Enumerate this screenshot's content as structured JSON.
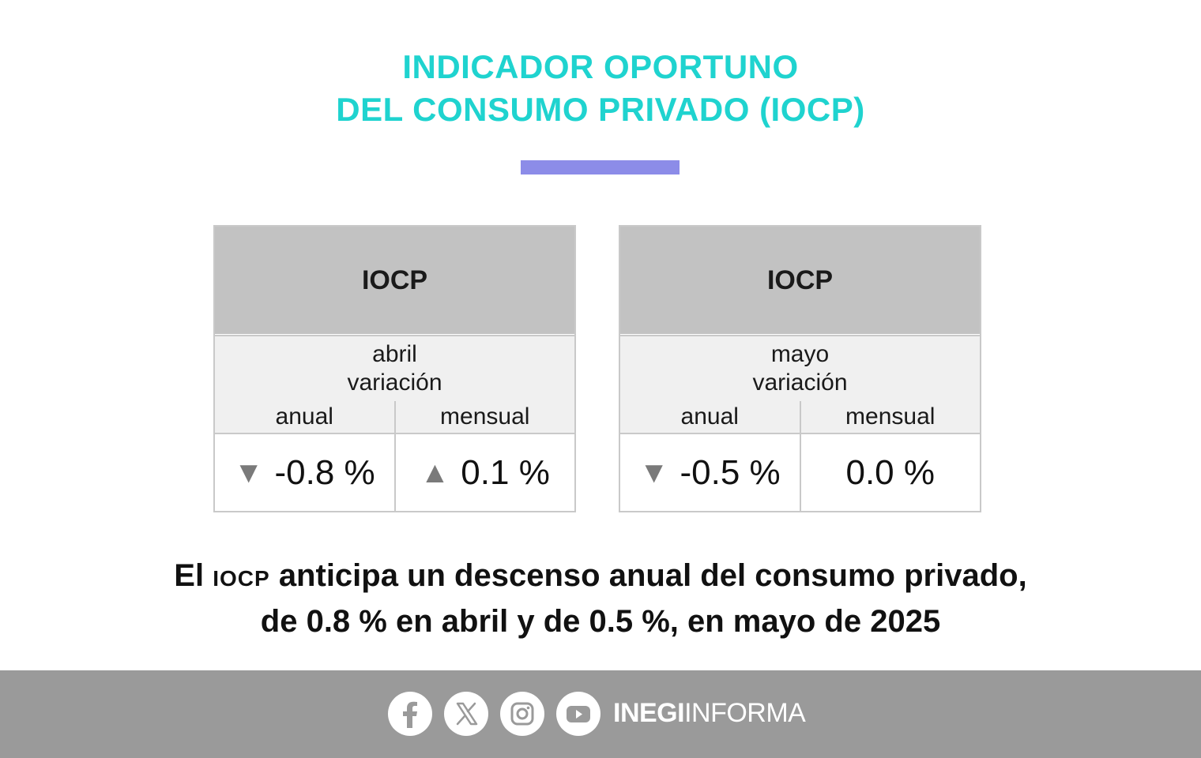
{
  "title": {
    "line1": "INDICADOR OPORTUNO",
    "line2": "DEL CONSUMO PRIVADO (IOCP)"
  },
  "colors": {
    "title": "#1fd3cf",
    "accent_bar": "#8c8ce8",
    "header_bg": "#c2c2c2",
    "footer_bg": "#9a9a9a"
  },
  "cards": [
    {
      "header": "IOCP",
      "month": "abril",
      "variation_label": "variación",
      "col_annual": "anual",
      "col_monthly": "mensual",
      "annual_value": "-0.8 %",
      "annual_arrow": "▼",
      "monthly_value": "0.1 %",
      "monthly_arrow": "▲"
    },
    {
      "header": "IOCP",
      "month": "mayo",
      "variation_label": "variación",
      "col_annual": "anual",
      "col_monthly": "mensual",
      "annual_value": "-0.5 %",
      "annual_arrow": "▼",
      "monthly_value": "0.0 %",
      "monthly_arrow": ""
    }
  ],
  "headline": {
    "prefix": "El",
    "acronym": "IOCP",
    "line1_rest": "anticipa un descenso anual del consumo privado,",
    "line2": "de 0.8 % en abril y de 0.5 %, en mayo de 2025"
  },
  "footer": {
    "icons": [
      "facebook-icon",
      "x-icon",
      "instagram-icon",
      "youtube-icon"
    ],
    "brand_bold": "INEGI",
    "brand_regular": "INFORMA"
  }
}
